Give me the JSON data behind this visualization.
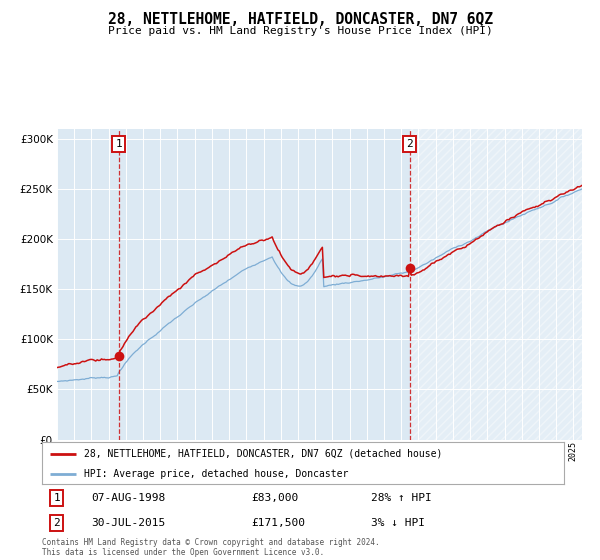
{
  "title": "28, NETTLEHOME, HATFIELD, DONCASTER, DN7 6QZ",
  "subtitle": "Price paid vs. HM Land Registry's House Price Index (HPI)",
  "legend_line1": "28, NETTLEHOME, HATFIELD, DONCASTER, DN7 6QZ (detached house)",
  "legend_line2": "HPI: Average price, detached house, Doncaster",
  "sale1_date": "07-AUG-1998",
  "sale1_price": 83000,
  "sale1_label": "28% ↑ HPI",
  "sale2_date": "30-JUL-2015",
  "sale2_price": 171500,
  "sale2_label": "3% ↓ HPI",
  "footer": "Contains HM Land Registry data © Crown copyright and database right 2024.\nThis data is licensed under the Open Government Licence v3.0.",
  "hpi_color": "#7eadd4",
  "price_color": "#cc1111",
  "background_color": "#dce9f3",
  "ylim": [
    0,
    310000
  ],
  "yticks": [
    0,
    50000,
    100000,
    150000,
    200000,
    250000,
    300000
  ],
  "sale1_year": 1998.583,
  "sale2_year": 2015.5,
  "xmin": 1995.0,
  "xmax": 2025.5
}
